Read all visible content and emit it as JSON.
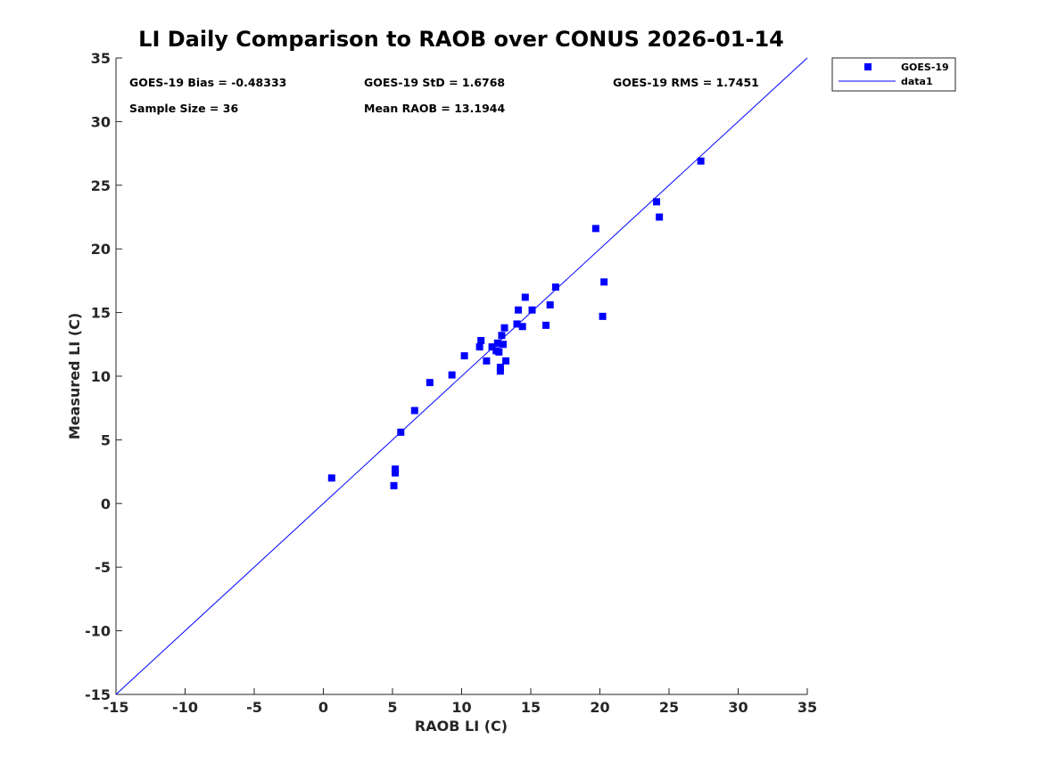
{
  "chart_data": {
    "type": "scatter",
    "title": "LI Daily Comparison to RAOB over CONUS 2026-01-14",
    "xlabel": "RAOB LI (C)",
    "ylabel": "Measured LI (C)",
    "xlim": [
      -15,
      35
    ],
    "ylim": [
      -15,
      35
    ],
    "xticks": [
      -15,
      -10,
      -5,
      0,
      5,
      10,
      15,
      20,
      25,
      30,
      35
    ],
    "yticks": [
      -15,
      -10,
      -5,
      0,
      5,
      10,
      15,
      20,
      25,
      30,
      35
    ],
    "grid": false,
    "legend_position": "outside-top-right",
    "series": [
      {
        "name": "GOES-19",
        "kind": "scatter",
        "marker": "square",
        "color": "#0000ff",
        "points": [
          [
            0.6,
            2.0
          ],
          [
            5.1,
            1.4
          ],
          [
            5.2,
            2.4
          ],
          [
            5.2,
            2.7
          ],
          [
            5.6,
            5.6
          ],
          [
            6.6,
            7.3
          ],
          [
            7.7,
            9.5
          ],
          [
            9.3,
            10.1
          ],
          [
            10.2,
            11.6
          ],
          [
            11.3,
            12.3
          ],
          [
            11.4,
            12.8
          ],
          [
            11.8,
            11.2
          ],
          [
            12.2,
            12.3
          ],
          [
            12.5,
            12.0
          ],
          [
            12.6,
            12.6
          ],
          [
            12.7,
            11.9
          ],
          [
            12.8,
            10.7
          ],
          [
            12.8,
            10.4
          ],
          [
            12.9,
            13.2
          ],
          [
            13.0,
            12.5
          ],
          [
            13.1,
            13.8
          ],
          [
            13.2,
            11.2
          ],
          [
            14.0,
            14.1
          ],
          [
            14.1,
            15.2
          ],
          [
            14.4,
            13.9
          ],
          [
            14.6,
            16.2
          ],
          [
            15.1,
            15.2
          ],
          [
            16.1,
            14.0
          ],
          [
            16.4,
            15.6
          ],
          [
            16.8,
            17.0
          ],
          [
            19.7,
            21.6
          ],
          [
            20.2,
            14.7
          ],
          [
            20.3,
            17.4
          ],
          [
            24.1,
            23.7
          ],
          [
            24.3,
            22.5
          ],
          [
            27.3,
            26.9
          ]
        ]
      },
      {
        "name": "data1",
        "kind": "line",
        "color": "#0000ff",
        "x": [
          -15,
          35
        ],
        "y": [
          -15,
          35
        ]
      }
    ],
    "annotations": {
      "bias": "GOES-19 Bias = -0.48333",
      "std": "GOES-19 StD = 1.6768",
      "rms": "GOES-19 RMS = 1.7451",
      "sample_size": "Sample Size = 36",
      "mean_raob": "Mean RAOB = 13.1944"
    }
  }
}
